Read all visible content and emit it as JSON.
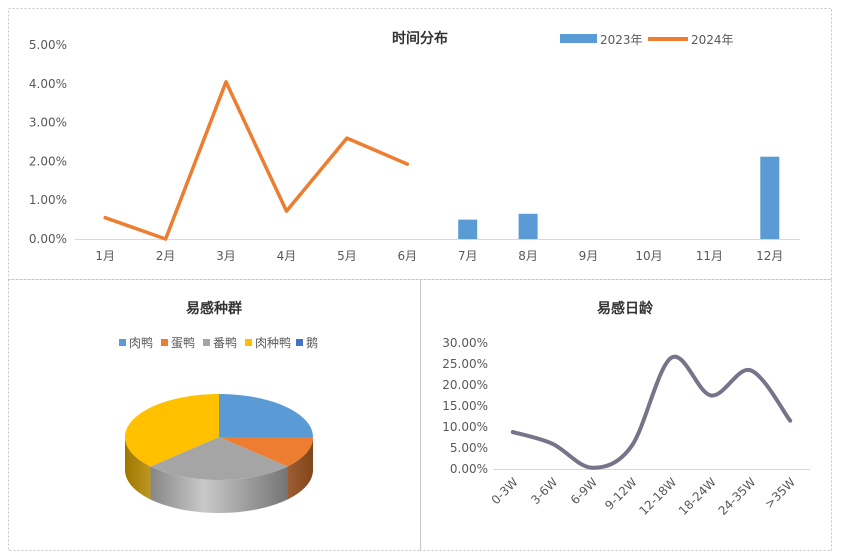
{
  "chart_data": [
    {
      "type": "bar",
      "title": "时间分布",
      "categories": [
        "1月",
        "2月",
        "3月",
        "4月",
        "5月",
        "6月",
        "7月",
        "8月",
        "9月",
        "10月",
        "11月",
        "12月"
      ],
      "series": [
        {
          "name": "2023年",
          "type": "bar",
          "color": "#5B9BD5",
          "values": [
            null,
            null,
            null,
            null,
            null,
            null,
            0.5,
            0.65,
            null,
            null,
            null,
            2.12
          ]
        },
        {
          "name": "2024年",
          "type": "line",
          "color": "#ED7D31",
          "values": [
            0.55,
            0.0,
            4.05,
            0.72,
            2.6,
            1.93,
            null,
            null,
            null,
            null,
            null,
            null
          ]
        }
      ],
      "ylim": [
        0,
        5
      ],
      "yticks": [
        "0.00%",
        "1.00%",
        "2.00%",
        "3.00%",
        "4.00%",
        "5.00%"
      ],
      "grid": false,
      "legend": "top-right"
    },
    {
      "type": "pie",
      "title": "易感种群",
      "categories": [
        "肉鸭",
        "蛋鸭",
        "番鸭",
        "肉种鸭",
        "鹅"
      ],
      "values": [
        25,
        12,
        26,
        37,
        0
      ],
      "colors": [
        "#5B9BD5",
        "#ED7D31",
        "#A5A5A5",
        "#FFC000",
        "#4472C4"
      ],
      "3d": true,
      "legend": "top"
    },
    {
      "type": "line",
      "title": "易感日龄",
      "categories": [
        "0-3W",
        "3-6W",
        "6-9W",
        "9-12W",
        "12-18W",
        "18-24W",
        "24-35W",
        ">35W"
      ],
      "series": [
        {
          "color": "#77748A",
          "values": [
            8.8,
            6.0,
            0.3,
            5.5,
            26.5,
            17.5,
            23.5,
            11.5
          ]
        }
      ],
      "smooth": true,
      "ylim": [
        0,
        30
      ],
      "yticks": [
        "0.00%",
        "5.00%",
        "10.00%",
        "15.00%",
        "20.00%",
        "25.00%",
        "30.00%"
      ],
      "grid": false,
      "legend": "none"
    }
  ]
}
